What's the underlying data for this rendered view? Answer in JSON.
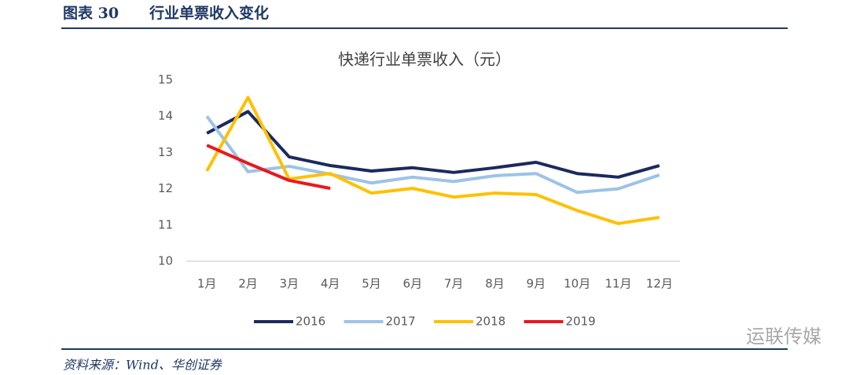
{
  "header": {
    "figure_no": "图表 30",
    "title": "行业单票收入变化"
  },
  "chart_data": {
    "type": "line",
    "title": "快递行业单票收入（元）",
    "categories": [
      "1月",
      "2月",
      "3月",
      "4月",
      "5月",
      "6月",
      "7月",
      "8月",
      "9月",
      "10月",
      "11月",
      "12月"
    ],
    "series": [
      {
        "name": "2016",
        "color": "#1b2a5e",
        "values": [
          13.53,
          14.13,
          12.88,
          12.64,
          12.49,
          12.58,
          12.45,
          12.58,
          12.73,
          12.42,
          12.32,
          12.64
        ]
      },
      {
        "name": "2017",
        "color": "#9dc3e6",
        "values": [
          14.0,
          12.47,
          12.62,
          12.4,
          12.16,
          12.32,
          12.2,
          12.36,
          12.42,
          11.9,
          12.0,
          12.38
        ]
      },
      {
        "name": "2018",
        "color": "#ffc000",
        "values": [
          12.49,
          14.52,
          12.27,
          12.42,
          11.88,
          12.01,
          11.77,
          11.88,
          11.84,
          11.4,
          11.04,
          11.21
        ]
      },
      {
        "name": "2019",
        "color": "#e8191e",
        "values": [
          13.2,
          12.7,
          12.23,
          12.01,
          null,
          null,
          null,
          null,
          null,
          null,
          null,
          null
        ]
      }
    ],
    "ylim": [
      10,
      15
    ],
    "yticks": [
      10,
      11,
      12,
      13,
      14,
      15
    ],
    "grid": false,
    "legend": "bottom"
  },
  "source": "资料来源：Wind、华创证券",
  "watermark": "运联传媒"
}
